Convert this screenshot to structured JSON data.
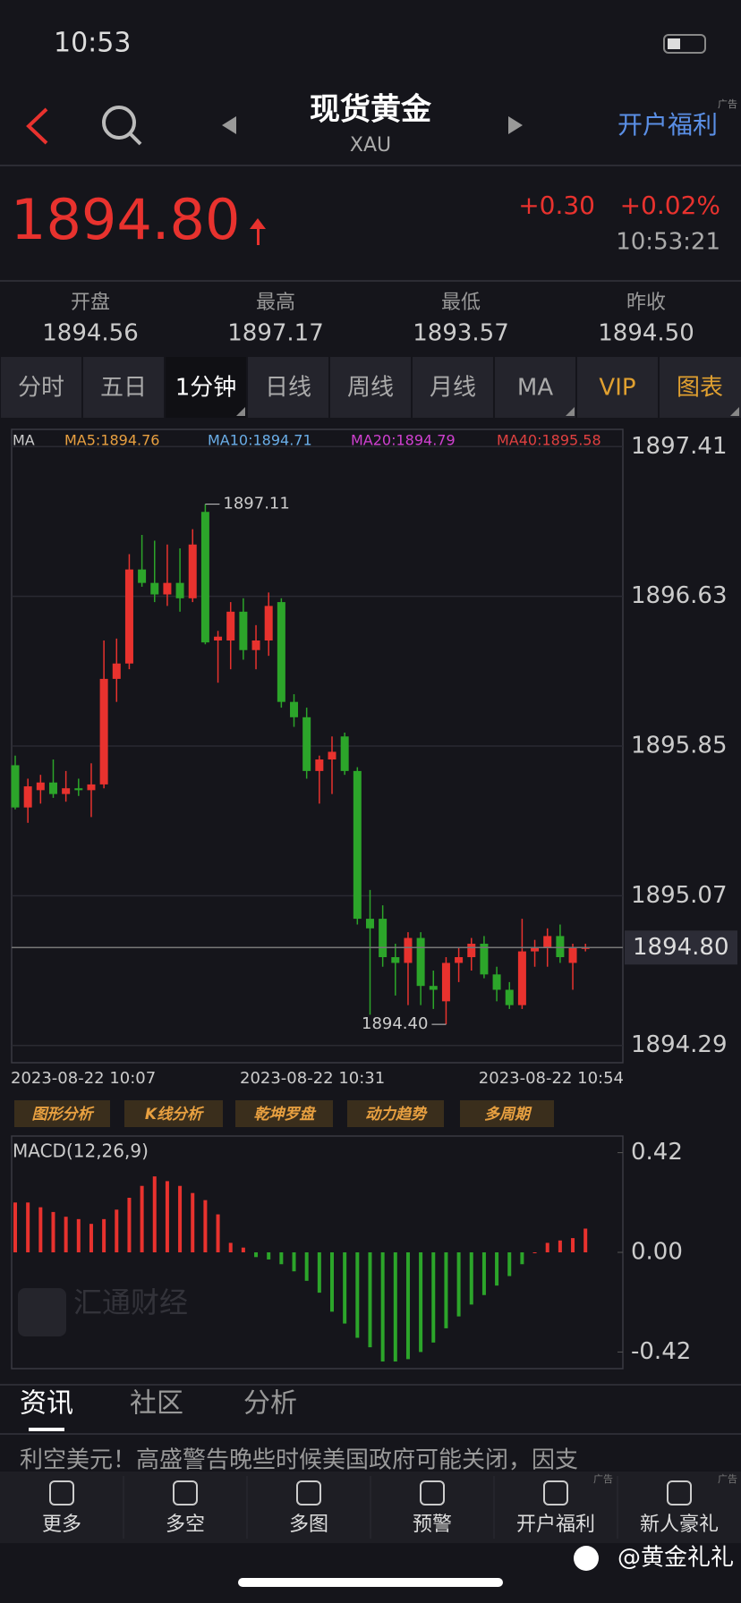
{
  "status": {
    "time": "10:53"
  },
  "nav": {
    "title": "现货黄金",
    "code": "XAU",
    "promo": "开户福利",
    "ad": "广告"
  },
  "quote": {
    "price": "1894.80",
    "change": "+0.30",
    "change_pct": "+0.02%",
    "time": "10:53:21"
  },
  "stats": [
    {
      "label": "开盘",
      "value": "1894.56"
    },
    {
      "label": "最高",
      "value": "1897.17"
    },
    {
      "label": "最低",
      "value": "1893.57"
    },
    {
      "label": "昨收",
      "value": "1894.50"
    }
  ],
  "tabs": [
    "分时",
    "五日",
    "1分钟",
    "日线",
    "周线",
    "月线",
    "MA",
    "VIP",
    "图表"
  ],
  "chart_data": [
    {
      "type": "candlestick",
      "legend": [
        "MA",
        "MA5:1894.76",
        "MA10:1894.71",
        "MA20:1894.79",
        "MA40:1895.58"
      ],
      "legend_colors": [
        "#cccccc",
        "#e8a040",
        "#6aaee8",
        "#d040d0",
        "#e04040"
      ],
      "x_labels": [
        "2023-08-22 10:07",
        "2023-08-22 10:31",
        "2023-08-22 10:54"
      ],
      "up_color": "#e8322e",
      "down_color": "#2ca52a",
      "open": [
        1895.75,
        1895.53,
        1895.62,
        1895.66,
        1895.6,
        1895.63,
        1895.62,
        1895.65,
        1896.2,
        1896.28,
        1896.77,
        1896.7,
        1896.64,
        1896.7,
        1896.62,
        1897.07,
        1896.4,
        1896.4,
        1896.55,
        1896.35,
        1896.4,
        1896.6,
        1896.08,
        1896.0,
        1895.72,
        1895.78,
        1895.9,
        1895.72,
        1894.95,
        1894.95,
        1894.75,
        1894.72,
        1894.85,
        1894.6,
        1894.52,
        1894.72,
        1894.75,
        1894.82,
        1894.66,
        1894.58,
        1894.5,
        1894.78,
        1894.8,
        1894.86,
        1894.72,
        1894.8
      ],
      "high": [
        1895.8,
        1895.68,
        1895.7,
        1895.78,
        1895.72,
        1895.68,
        1895.76,
        1896.4,
        1896.41,
        1896.85,
        1896.95,
        1896.92,
        1896.9,
        1896.88,
        1896.98,
        1897.11,
        1896.45,
        1896.6,
        1896.62,
        1896.48,
        1896.65,
        1896.62,
        1896.12,
        1896.05,
        1895.8,
        1895.9,
        1895.92,
        1895.74,
        1895.1,
        1895.02,
        1894.82,
        1894.88,
        1894.88,
        1894.68,
        1894.75,
        1894.8,
        1894.85,
        1894.86,
        1894.7,
        1894.62,
        1894.95,
        1894.84,
        1894.9,
        1894.92,
        1894.82,
        1894.82
      ],
      "low": [
        1895.52,
        1895.45,
        1895.55,
        1895.58,
        1895.56,
        1895.59,
        1895.48,
        1895.63,
        1896.08,
        1896.25,
        1896.68,
        1896.6,
        1896.58,
        1896.55,
        1896.6,
        1896.38,
        1896.18,
        1896.25,
        1896.3,
        1896.25,
        1896.32,
        1896.05,
        1895.95,
        1895.68,
        1895.55,
        1895.6,
        1895.7,
        1894.92,
        1894.45,
        1894.7,
        1894.55,
        1894.5,
        1894.5,
        1894.48,
        1894.4,
        1894.62,
        1894.68,
        1894.64,
        1894.52,
        1894.48,
        1894.48,
        1894.7,
        1894.7,
        1894.72,
        1894.58,
        1894.78
      ],
      "close": [
        1895.53,
        1895.64,
        1895.66,
        1895.6,
        1895.63,
        1895.62,
        1895.65,
        1896.2,
        1896.28,
        1896.77,
        1896.7,
        1896.64,
        1896.7,
        1896.62,
        1896.9,
        1896.39,
        1896.42,
        1896.55,
        1896.35,
        1896.4,
        1896.58,
        1896.08,
        1896.0,
        1895.72,
        1895.78,
        1895.82,
        1895.72,
        1894.95,
        1894.9,
        1894.75,
        1894.72,
        1894.85,
        1894.6,
        1894.58,
        1894.72,
        1894.75,
        1894.82,
        1894.66,
        1894.58,
        1894.5,
        1894.78,
        1894.8,
        1894.86,
        1894.75,
        1894.8,
        1894.8
      ],
      "annotations": [
        "1897.11",
        "1894.40"
      ],
      "current": {
        "value": 1894.8,
        "label": "1894.80"
      },
      "ylim": [
        1894.2,
        1897.5
      ],
      "yticks": [
        1897.41,
        1896.63,
        1895.85,
        1895.07,
        1894.29
      ],
      "grid": true
    },
    {
      "type": "bar",
      "title": "MACD(12,26,9)",
      "up_color": "#e8322e",
      "down_color": "#2ca52a",
      "values": [
        0.21,
        0.21,
        0.19,
        0.17,
        0.15,
        0.14,
        0.12,
        0.14,
        0.18,
        0.23,
        0.28,
        0.32,
        0.3,
        0.28,
        0.25,
        0.22,
        0.16,
        0.04,
        0.02,
        -0.02,
        -0.03,
        -0.05,
        -0.08,
        -0.12,
        -0.17,
        -0.25,
        -0.3,
        -0.36,
        -0.4,
        -0.46,
        -0.46,
        -0.45,
        -0.42,
        -0.38,
        -0.32,
        -0.27,
        -0.22,
        -0.18,
        -0.14,
        -0.1,
        -0.05,
        0.0,
        0.04,
        0.05,
        0.06,
        0.1
      ],
      "ylim": [
        -0.49,
        0.49
      ],
      "yticks": [
        0.42,
        {
          "value": 0,
          "label": "0.00"
        },
        -0.42
      ]
    }
  ],
  "tools": [
    "图形分析",
    "K线分析",
    "乾坤罗盘",
    "动力趋势",
    "多周期"
  ],
  "watermark": "汇通财经",
  "news_tabs": [
    "资讯",
    "社区",
    "分析"
  ],
  "news_text": "利空美元！高盛警告晚些时候美国政府可能关闭，因支",
  "bottom": [
    "更多",
    "多空",
    "多图",
    "预警",
    "开户福利",
    "新人豪礼"
  ],
  "bottom_ad": "广告",
  "credit": "@黄金礼礼"
}
